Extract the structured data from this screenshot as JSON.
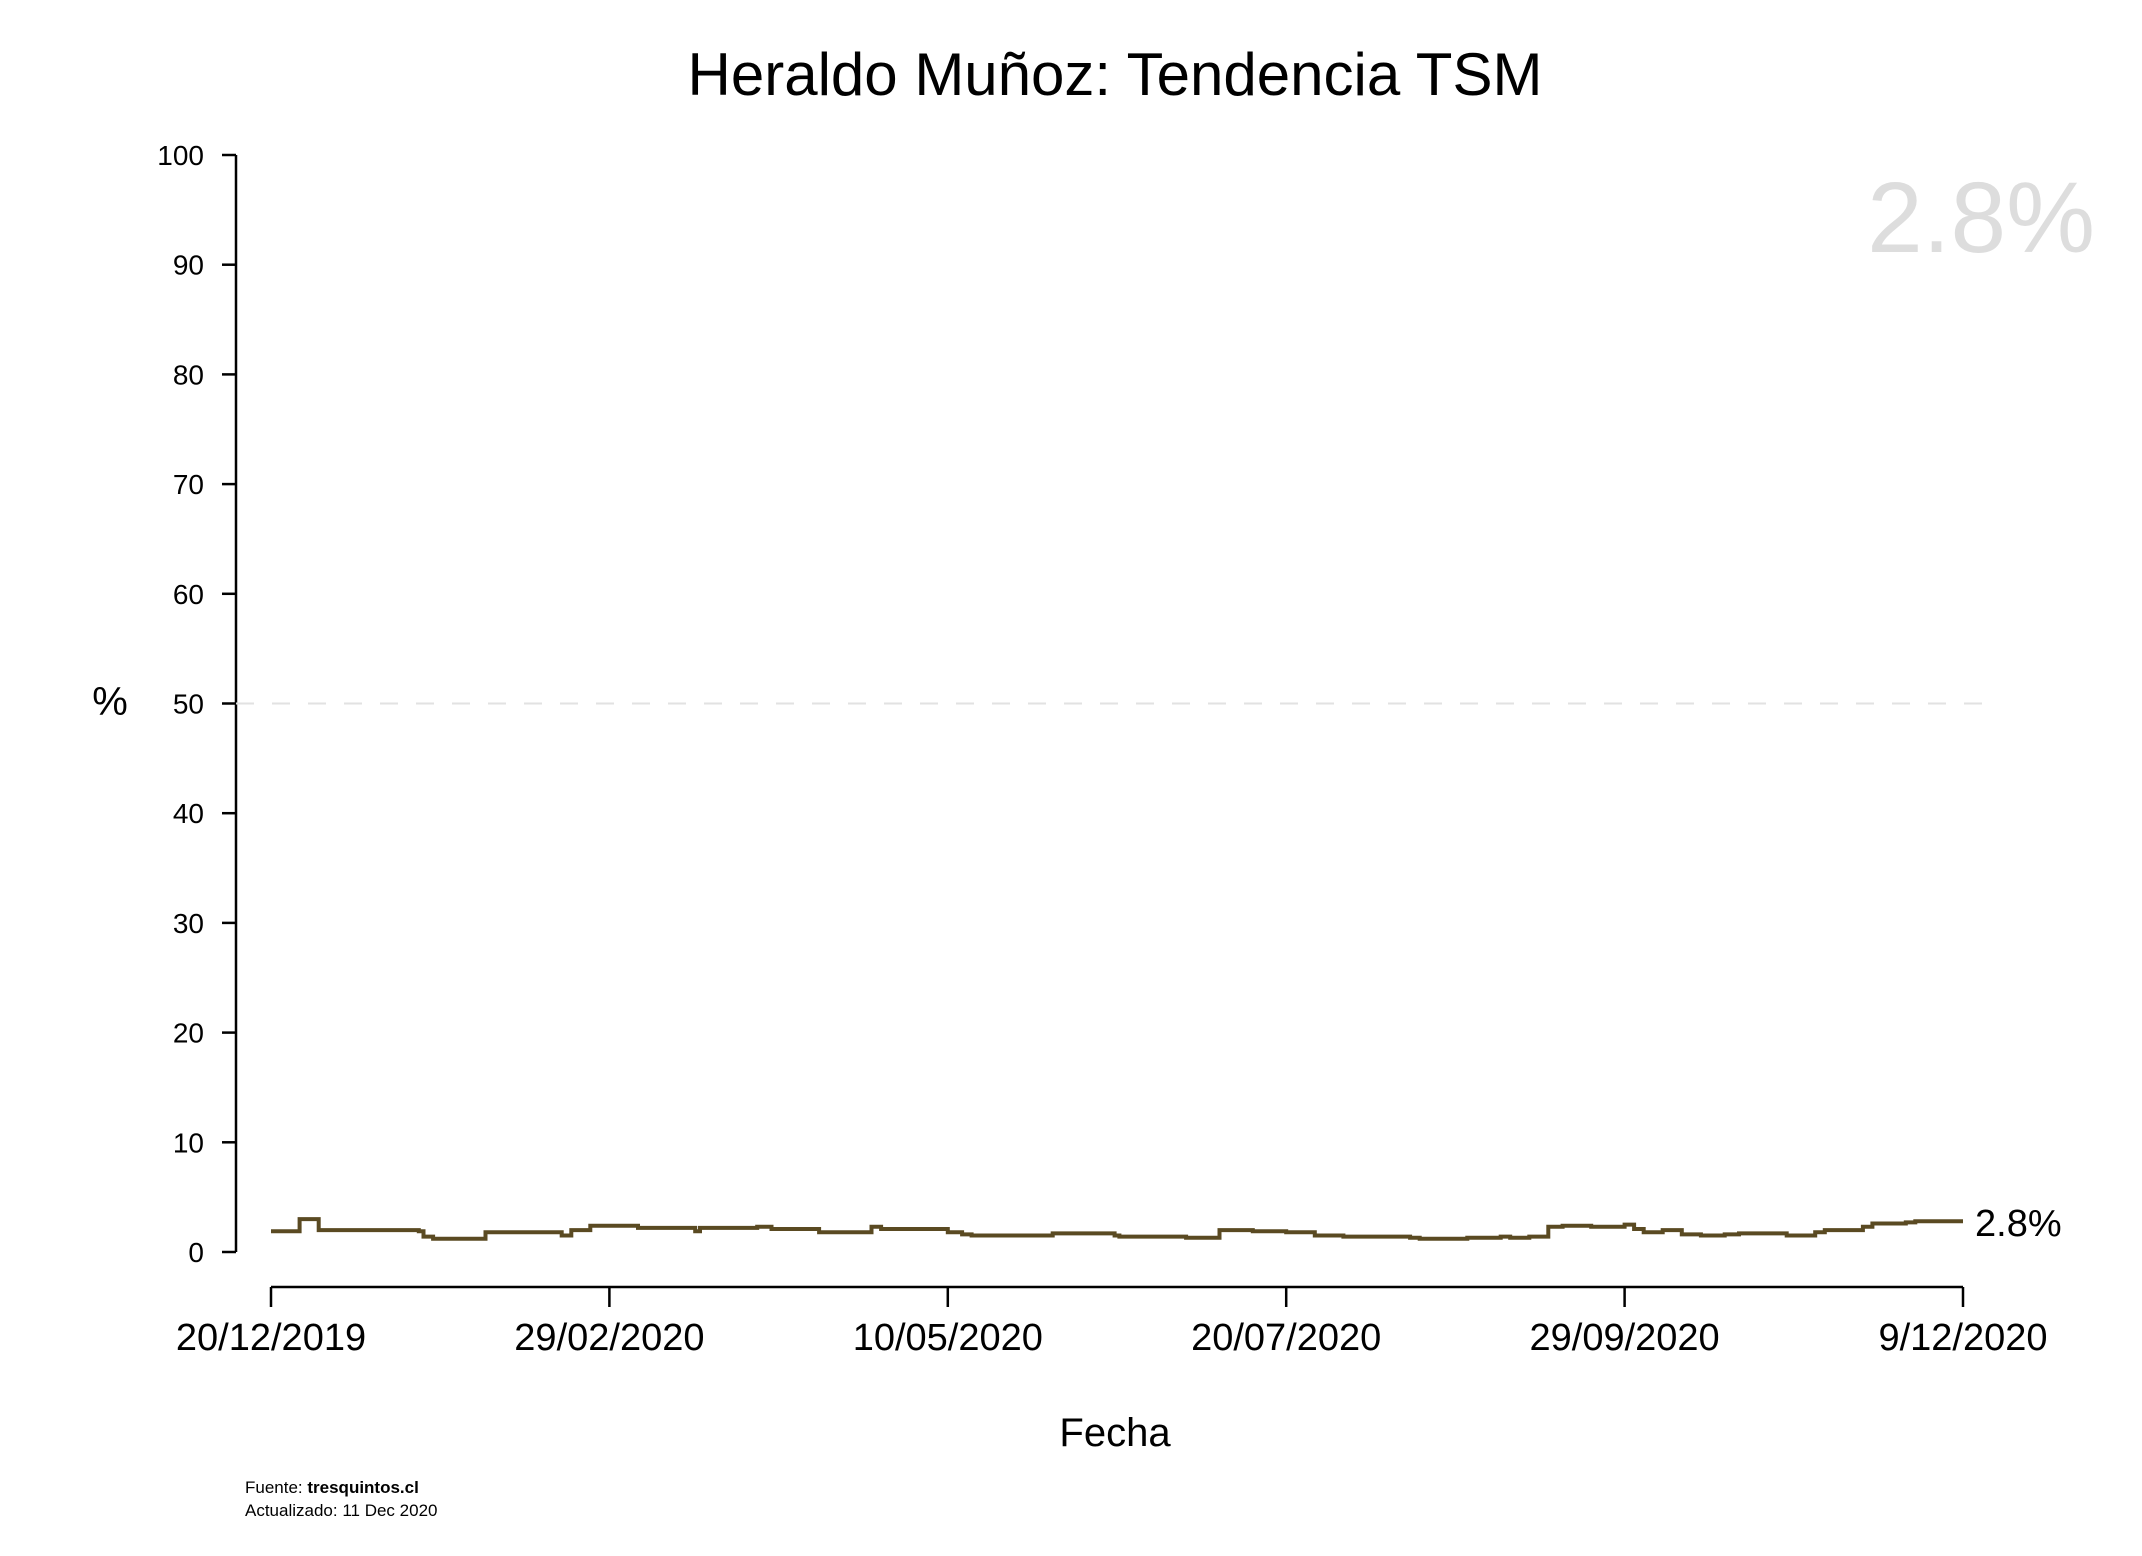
{
  "chart_data": {
    "type": "line",
    "step": true,
    "title": "Heraldo Muñoz: Tendencia TSM",
    "xlabel": "Fecha",
    "ylabel": "%",
    "ylim": [
      0,
      100
    ],
    "yticks": [
      0,
      10,
      20,
      30,
      40,
      50,
      60,
      70,
      80,
      90,
      100
    ],
    "xlim": [
      "2019-12-20",
      "2020-12-09"
    ],
    "xticks": [
      {
        "date": "2019-12-20",
        "label": "20/12/2019"
      },
      {
        "date": "2020-02-29",
        "label": "29/02/2020"
      },
      {
        "date": "2020-05-10",
        "label": "10/05/2020"
      },
      {
        "date": "2020-07-20",
        "label": "20/07/2020"
      },
      {
        "date": "2020-09-29",
        "label": "29/09/2020"
      },
      {
        "date": "2020-12-09",
        "label": "9/12/2020"
      }
    ],
    "reference_line": {
      "y": 50,
      "style": "dashed"
    },
    "grid": false,
    "line_color": "#5a4a22",
    "series": [
      {
        "x": [
          "2019-12-20",
          "2019-12-26",
          "2019-12-30",
          "2020-01-20",
          "2020-01-21",
          "2020-01-23",
          "2020-02-03",
          "2020-02-19",
          "2020-02-21",
          "2020-02-25",
          "2020-03-06",
          "2020-03-18",
          "2020-03-19",
          "2020-03-31",
          "2020-04-03",
          "2020-04-13",
          "2020-04-24",
          "2020-04-26",
          "2020-05-10",
          "2020-05-13",
          "2020-05-15",
          "2020-06-01",
          "2020-06-14",
          "2020-06-15",
          "2020-06-29",
          "2020-07-06",
          "2020-07-13",
          "2020-07-20",
          "2020-07-26",
          "2020-08-01",
          "2020-08-15",
          "2020-08-17",
          "2020-08-27",
          "2020-09-03",
          "2020-09-05",
          "2020-09-09",
          "2020-09-11",
          "2020-09-13",
          "2020-09-16",
          "2020-09-22",
          "2020-09-29",
          "2020-10-01",
          "2020-10-03",
          "2020-10-07",
          "2020-10-11",
          "2020-10-15",
          "2020-10-20",
          "2020-10-23",
          "2020-11-02",
          "2020-11-08",
          "2020-11-10",
          "2020-11-18",
          "2020-11-20",
          "2020-11-27",
          "2020-11-29",
          "2020-12-09"
        ],
        "y": [
          1.9,
          3.0,
          2.0,
          1.9,
          1.4,
          1.2,
          1.8,
          1.5,
          2.0,
          2.4,
          2.2,
          1.9,
          2.2,
          2.3,
          2.1,
          1.8,
          2.3,
          2.1,
          1.8,
          1.6,
          1.5,
          1.7,
          1.5,
          1.4,
          1.3,
          2.0,
          1.9,
          1.8,
          1.5,
          1.4,
          1.3,
          1.2,
          1.3,
          1.4,
          1.3,
          1.4,
          1.4,
          2.3,
          2.4,
          2.3,
          2.5,
          2.1,
          1.8,
          2.0,
          1.6,
          1.5,
          1.6,
          1.7,
          1.5,
          1.8,
          2.0,
          2.3,
          2.6,
          2.7,
          2.8,
          2.8
        ]
      }
    ],
    "current_value_label": "2.8%",
    "end_label": "2.8%"
  },
  "footer": {
    "source_prefix": "Fuente: ",
    "source_name": "tresquintos.cl",
    "updated": "Actualizado: 11 Dec 2020"
  }
}
